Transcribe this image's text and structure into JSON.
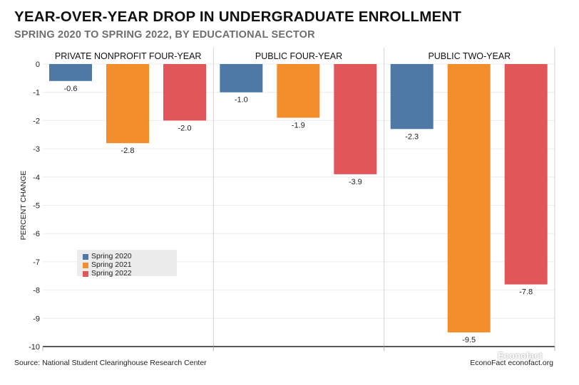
{
  "title": "YEAR-OVER-YEAR DROP IN UNDERGRADUATE ENROLLMENT",
  "subtitle": "SPRING 2020 TO SPRING 2022, BY EDUCATIONAL SECTOR",
  "source": "Source: National Student Clearinghouse Research Center",
  "credit": "EconoFact  econofact.org",
  "watermark": "Econofact",
  "colors": {
    "Spring 2020": "#4e79a7",
    "Spring 2021": "#f28e2b",
    "Spring 2022": "#e15759"
  },
  "chart_data": {
    "type": "bar",
    "ylabel": "PERCENT CHANGE",
    "ylim": [
      -10,
      0
    ],
    "yticks": [
      0,
      -1,
      -2,
      -3,
      -4,
      -5,
      -6,
      -7,
      -8,
      -9,
      -10
    ],
    "grid": true,
    "legend_placement": "bottom-left",
    "panels": [
      "PRIVATE NONPROFIT FOUR-YEAR",
      "PUBLIC FOUR-YEAR",
      "PUBLIC TWO-YEAR"
    ],
    "series": [
      {
        "name": "Spring 2020",
        "values": [
          -0.6,
          -1.0,
          -2.3
        ],
        "labels": [
          "-0.6",
          "-1.0",
          "-2.3"
        ]
      },
      {
        "name": "Spring 2021",
        "values": [
          -2.8,
          -1.9,
          -9.5
        ],
        "labels": [
          "-2.8",
          "-1.9",
          "-9.5"
        ]
      },
      {
        "name": "Spring 2022",
        "values": [
          -2.0,
          -3.9,
          -7.8
        ],
        "labels": [
          "-2.0",
          "-3.9",
          "-7.8"
        ]
      }
    ]
  }
}
